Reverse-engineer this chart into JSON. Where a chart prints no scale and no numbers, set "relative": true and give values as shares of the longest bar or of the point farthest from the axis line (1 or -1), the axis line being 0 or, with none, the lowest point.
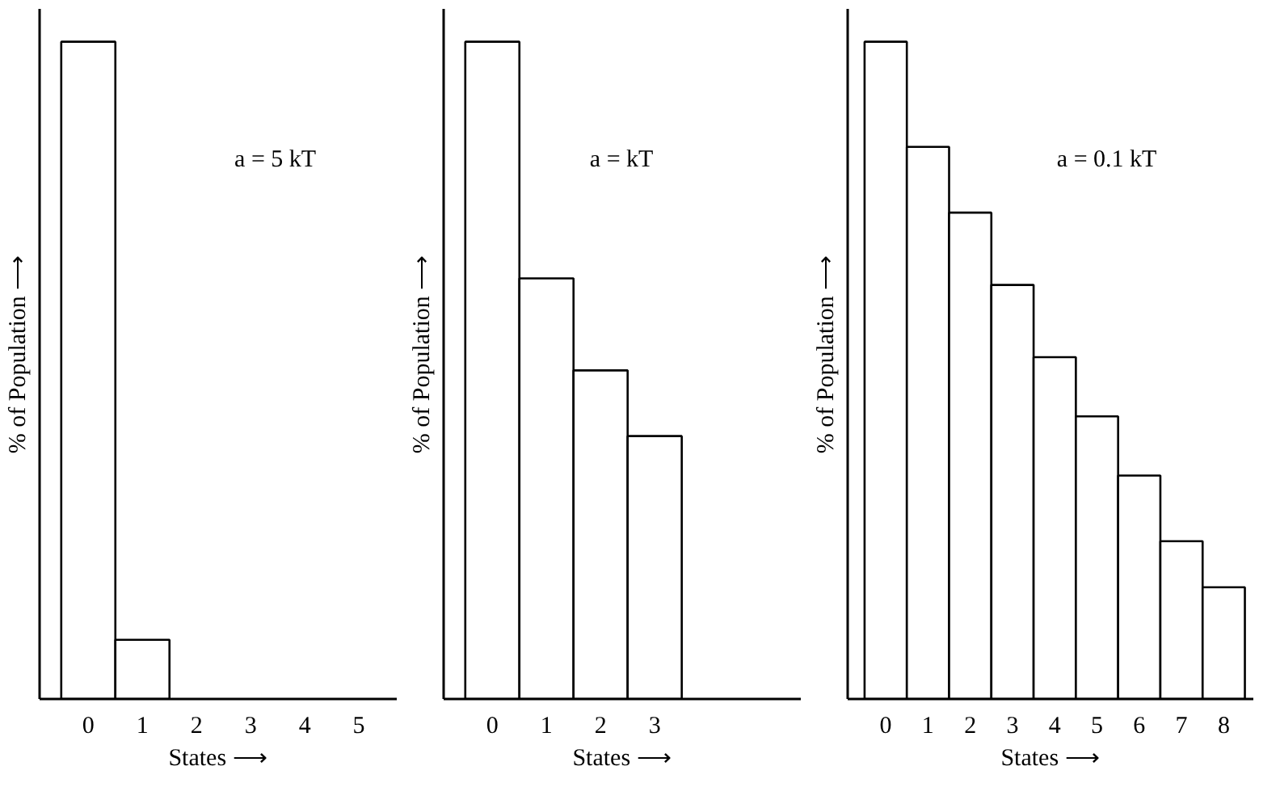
{
  "chart_data": [
    {
      "type": "bar",
      "relative": true,
      "categories": [
        "0",
        "1",
        "2",
        "3",
        "4",
        "5"
      ],
      "values": [
        1,
        0.09,
        0,
        0,
        0,
        0
      ],
      "color": "#ffffff",
      "xlabel": "States ⟶",
      "ylabel": "% of Population ⟶",
      "annotations": [
        "a = 5 kT"
      ],
      "grid": false
    },
    {
      "type": "bar",
      "relative": true,
      "categories": [
        "0",
        "1",
        "2",
        "3"
      ],
      "values": [
        1,
        0.64,
        0.5,
        0.4
      ],
      "color": "#ffffff",
      "xlabel": "States ⟶",
      "ylabel": "% of Population ⟶",
      "annotations": [
        "a = kT"
      ],
      "grid": false
    },
    {
      "type": "bar",
      "relative": true,
      "categories": [
        "0",
        "1",
        "2",
        "3",
        "4",
        "5",
        "6",
        "7",
        "8"
      ],
      "values": [
        1,
        0.84,
        0.74,
        0.63,
        0.52,
        0.43,
        0.34,
        0.24,
        0.17
      ],
      "color": "#ffffff",
      "xlabel": "States ⟶",
      "ylabel": "% of Population ⟶",
      "annotations": [
        "a = 0.1 kT"
      ],
      "grid": false
    }
  ]
}
